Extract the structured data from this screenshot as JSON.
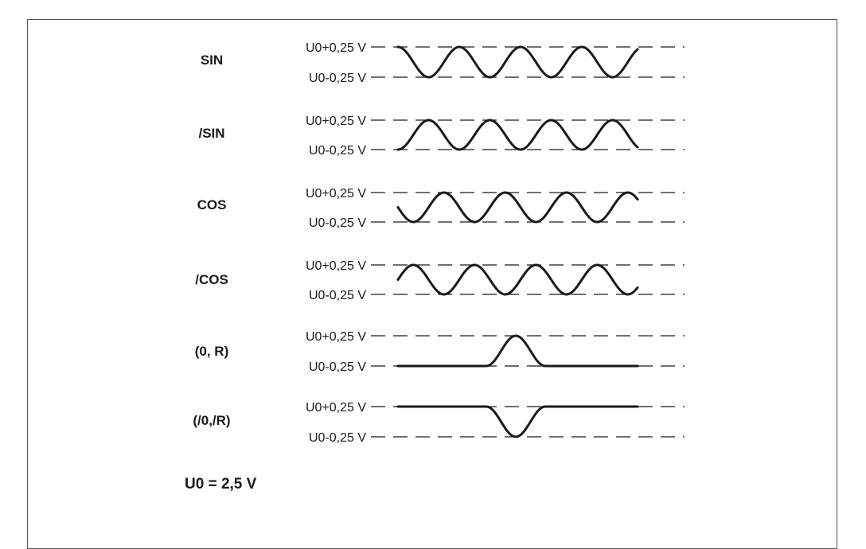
{
  "diagram": {
    "level_high_label": "U0+0,25 V",
    "level_low_label": "U0-0,25 V",
    "footnote": "U0 = 2,5 V",
    "signals": [
      {
        "name": "SIN",
        "kind": "sine",
        "phase_deg": 0
      },
      {
        "name": "/SIN",
        "kind": "sine",
        "phase_deg": 180
      },
      {
        "name": "COS",
        "kind": "sine",
        "phase_deg": 90
      },
      {
        "name": "/COS",
        "kind": "sine",
        "phase_deg": 270
      },
      {
        "name": "(0, R)",
        "kind": "pulse_up"
      },
      {
        "name": "(/0,/R)",
        "kind": "pulse_down"
      }
    ],
    "colors": {
      "line": "#1a1a1a",
      "frame": "#555555"
    }
  }
}
